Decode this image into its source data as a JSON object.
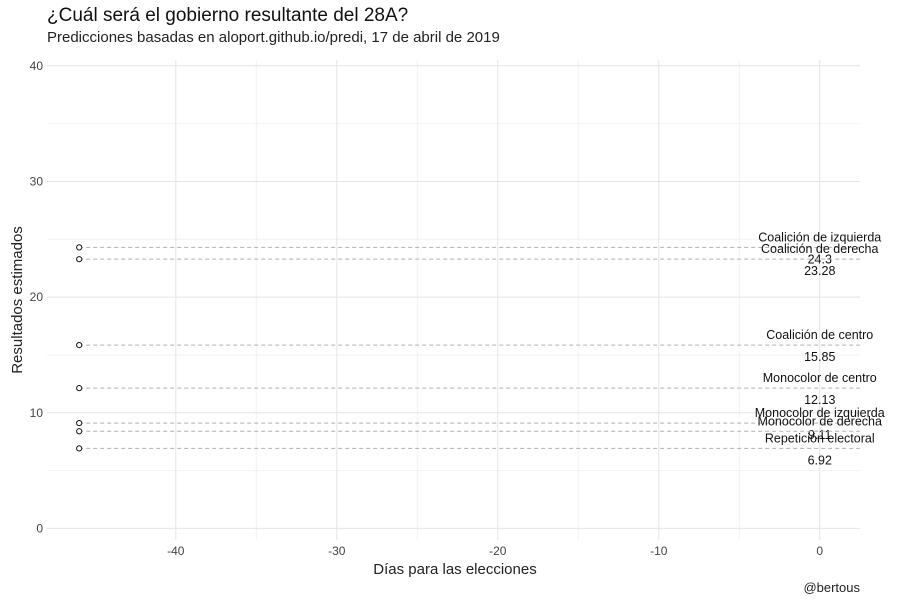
{
  "chart_data": {
    "type": "scatter",
    "title": "¿Cuál será el gobierno resultante del 28A?",
    "subtitle": "Predicciones basadas en aloport.github.io/predi, 17 de abril de 2019",
    "xlabel": "Días para las elecciones",
    "ylabel": "Resultados estimados",
    "caption": "@bertous",
    "xlim": [
      -48,
      2.5
    ],
    "ylim": [
      -1,
      40.5
    ],
    "x_ticks": [
      -40,
      -30,
      -20,
      -10,
      0
    ],
    "x_tick_labels": [
      "-40",
      "-30",
      "-20",
      "-10",
      "0"
    ],
    "y_ticks": [
      0,
      10,
      20,
      30,
      40
    ],
    "y_tick_labels": [
      "0",
      "10",
      "20",
      "30",
      "40"
    ],
    "grid": true,
    "series": [
      {
        "name": "Coalición de izquierda",
        "x": -46,
        "value": 24.3,
        "value_label": "24.3"
      },
      {
        "name": "Coalición de derecha",
        "x": -46,
        "value": 23.28,
        "value_label": "23.28"
      },
      {
        "name": "Coalición de centro",
        "x": -46,
        "value": 15.85,
        "value_label": "15.85"
      },
      {
        "name": "Monocolor de centro",
        "x": -46,
        "value": 12.13,
        "value_label": "12.13"
      },
      {
        "name": "Monocolor de izquierda",
        "x": -46,
        "value": 9.11,
        "value_label": "9.11"
      },
      {
        "name": "Monocolor de derecha",
        "x": -46,
        "value": 8.4,
        "value_label": ""
      },
      {
        "name": "Repetición electoral",
        "x": -46,
        "value": 6.92,
        "value_label": "6.92"
      }
    ]
  }
}
